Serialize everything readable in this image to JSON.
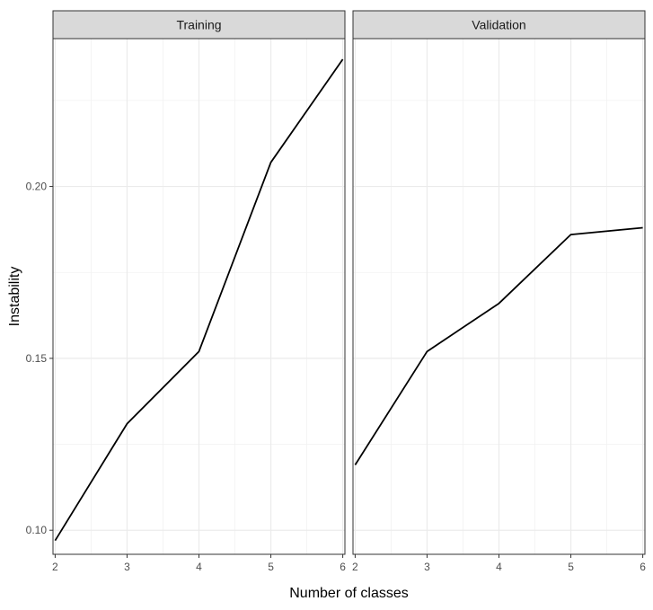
{
  "chart_data": {
    "type": "line",
    "xlabel": "Number of classes",
    "ylabel": "Instability",
    "ylim": [
      0.093,
      0.243
    ],
    "y_ticks": [
      0.1,
      0.15,
      0.2
    ],
    "y_tick_labels": [
      "0.10",
      "0.15",
      "0.20"
    ],
    "xlim": [
      1.97,
      6.03
    ],
    "x_ticks": [
      2,
      3,
      4,
      5,
      6
    ],
    "x_tick_labels": [
      "2",
      "3",
      "4",
      "5",
      "6"
    ],
    "grid": true,
    "line_color": "#000000",
    "panels": [
      {
        "title": "Training",
        "x": [
          2,
          3,
          4,
          5,
          6
        ],
        "y": [
          0.097,
          0.131,
          0.152,
          0.207,
          0.237
        ]
      },
      {
        "title": "Validation",
        "x": [
          2,
          3,
          4,
          5,
          6
        ],
        "y": [
          0.119,
          0.152,
          0.166,
          0.186,
          0.188
        ]
      }
    ]
  }
}
